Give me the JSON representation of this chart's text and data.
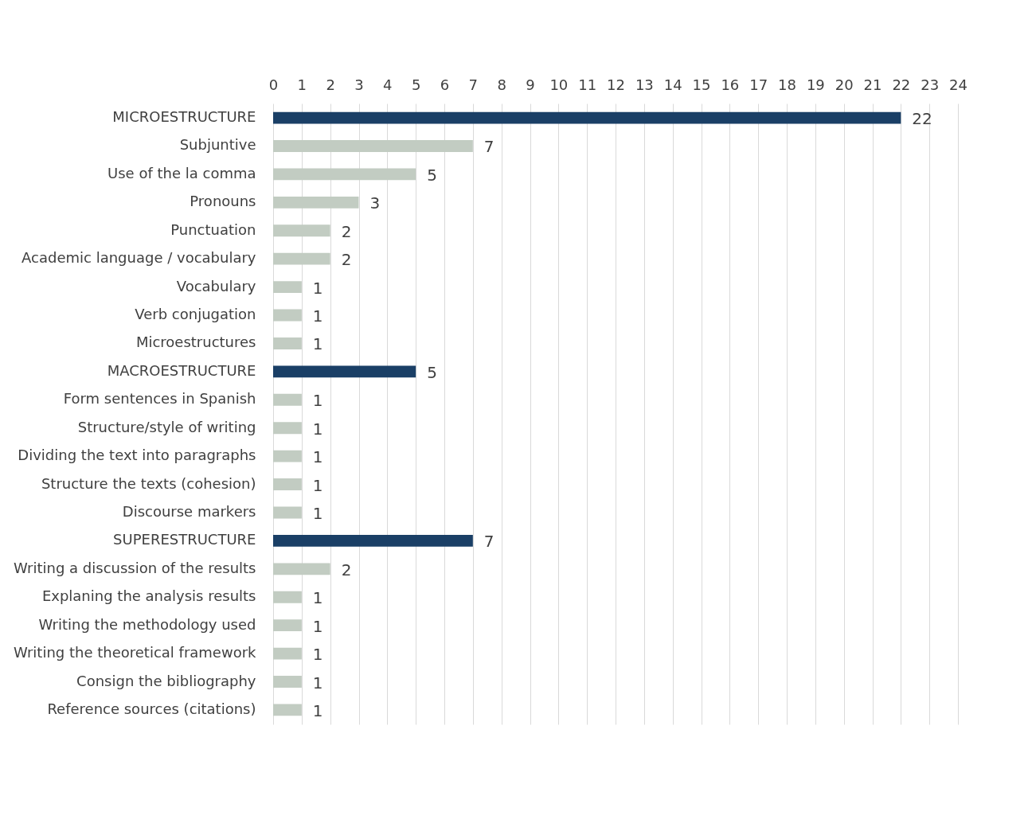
{
  "chart_data": {
    "type": "bar",
    "orientation": "horizontal",
    "categories": [
      "MICROESTRUCTURE",
      "Subjuntive",
      "Use of the la comma",
      "Pronouns",
      "Punctuation",
      "Academic language / vocabulary",
      "Vocabulary",
      "Verb conjugation",
      "Microestructures",
      "MACROESTRUCTURE",
      "Form sentences in Spanish",
      "Structure/style of writing",
      "Dividing the text into paragraphs",
      "Structure the texts (cohesion)",
      "Discourse markers",
      "SUPERESTRUCTURE",
      "Writing a discussion of the results",
      "Explaning the analysis results",
      "Writing the methodology used",
      "Writing the theoretical framework",
      "Consign the bibliography",
      "Reference sources (citations)"
    ],
    "values": [
      22,
      7,
      5,
      3,
      2,
      2,
      1,
      1,
      1,
      5,
      1,
      1,
      1,
      1,
      1,
      7,
      2,
      1,
      1,
      1,
      1,
      1
    ],
    "colors": [
      "#1a3f66",
      "#c2ccc2",
      "#c2ccc2",
      "#c2ccc2",
      "#c2ccc2",
      "#c2ccc2",
      "#c2ccc2",
      "#c2ccc2",
      "#c2ccc2",
      "#1a3f66",
      "#c2ccc2",
      "#c2ccc2",
      "#c2ccc2",
      "#c2ccc2",
      "#c2ccc2",
      "#1a3f66",
      "#c2ccc2",
      "#c2ccc2",
      "#c2ccc2",
      "#c2ccc2",
      "#c2ccc2",
      "#c2ccc2"
    ],
    "xlim": [
      0,
      24
    ],
    "xticks": [
      0,
      1,
      2,
      3,
      4,
      5,
      6,
      7,
      8,
      9,
      10,
      11,
      12,
      13,
      14,
      15,
      16,
      17,
      18,
      19,
      20,
      21,
      22,
      23,
      24
    ],
    "grid": "x",
    "data_labels": true
  }
}
